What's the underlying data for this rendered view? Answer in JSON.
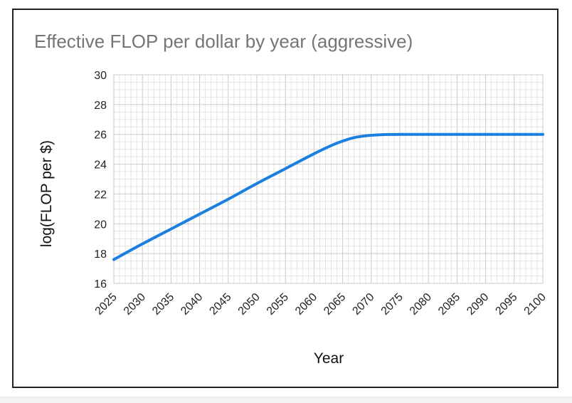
{
  "chart_data": {
    "type": "line",
    "title": "Effective FLOP per dollar by year (aggressive)",
    "xlabel": "Year",
    "ylabel": "log(FLOP per $)",
    "xlim": [
      2025,
      2100
    ],
    "ylim": [
      16,
      30
    ],
    "x_ticks": [
      "2025",
      "2030",
      "2035",
      "2040",
      "2045",
      "2050",
      "2055",
      "2060",
      "2065",
      "2070",
      "2075",
      "2080",
      "2085",
      "2090",
      "2095",
      "2100"
    ],
    "y_ticks": [
      "16",
      "18",
      "20",
      "22",
      "24",
      "26",
      "28",
      "30"
    ],
    "grid": true,
    "legend": "none",
    "series": [
      {
        "color": "#1a7fe0",
        "x": [
          2025,
          2030,
          2035,
          2040,
          2045,
          2050,
          2055,
          2060,
          2063,
          2065,
          2067,
          2069,
          2071,
          2073,
          2075,
          2080,
          2085,
          2090,
          2095,
          2100
        ],
        "y": [
          17.6,
          18.65,
          19.65,
          20.65,
          21.65,
          22.7,
          23.7,
          24.7,
          25.25,
          25.55,
          25.78,
          25.9,
          25.96,
          25.99,
          26.0,
          26.0,
          26.0,
          26.0,
          26.0,
          26.0
        ]
      }
    ]
  }
}
